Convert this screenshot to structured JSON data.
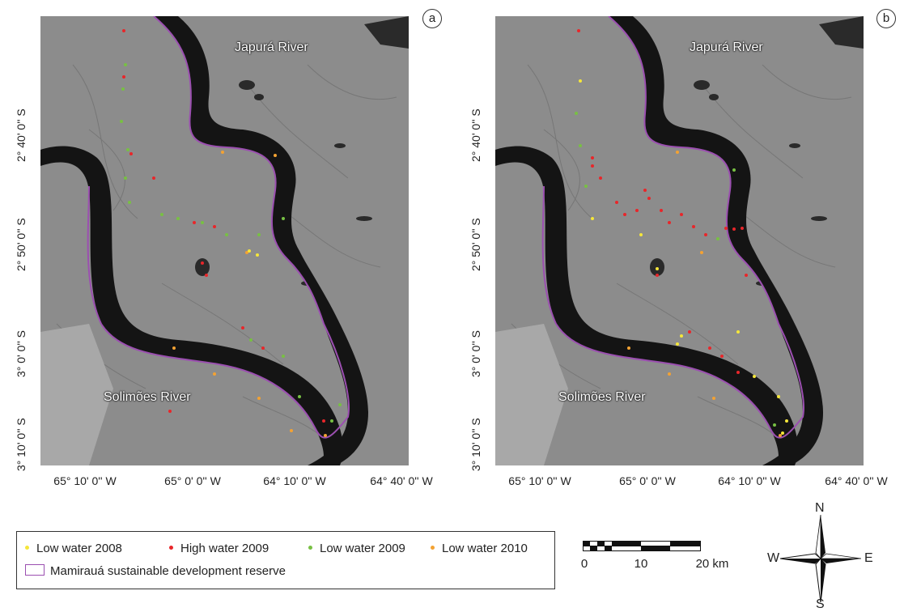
{
  "panels": [
    {
      "id": "a",
      "letter": "a",
      "top_river": "Japurá River",
      "bottom_river": "Solimões River"
    },
    {
      "id": "b",
      "letter": "b",
      "top_river": "Japurá River",
      "bottom_river": "Solimões River"
    }
  ],
  "axes": {
    "x_ticks": [
      "65° 10' 0'' W",
      "65° 0' 0'' W",
      "64° 10' 0'' W",
      "64° 40' 0'' W"
    ],
    "y_ticks": [
      "2° 40' 0'' S",
      "2° 50' 0'' S",
      "3° 0' 0'' S",
      "3° 10' 0'' S"
    ]
  },
  "legend": {
    "items": [
      {
        "label": "Low water 2008",
        "color": "#f5e63a"
      },
      {
        "label": "High water 2009",
        "color": "#e8262a"
      },
      {
        "label": "Low water 2009",
        "color": "#78c043"
      },
      {
        "label": "Low water 2010",
        "color": "#f3a233"
      }
    ],
    "reserve_label": "Mamirauá sustainable development reserve",
    "reserve_color": "#9b4fb0"
  },
  "scalebar": {
    "labels": [
      "0",
      "10",
      "20 km"
    ]
  },
  "compass": {
    "n": "N",
    "s": "S",
    "e": "E",
    "w": "W"
  },
  "colors": {
    "river": "#1a1a1a",
    "land": "#8a8a8a",
    "boundary": "#9b4fb0"
  }
}
